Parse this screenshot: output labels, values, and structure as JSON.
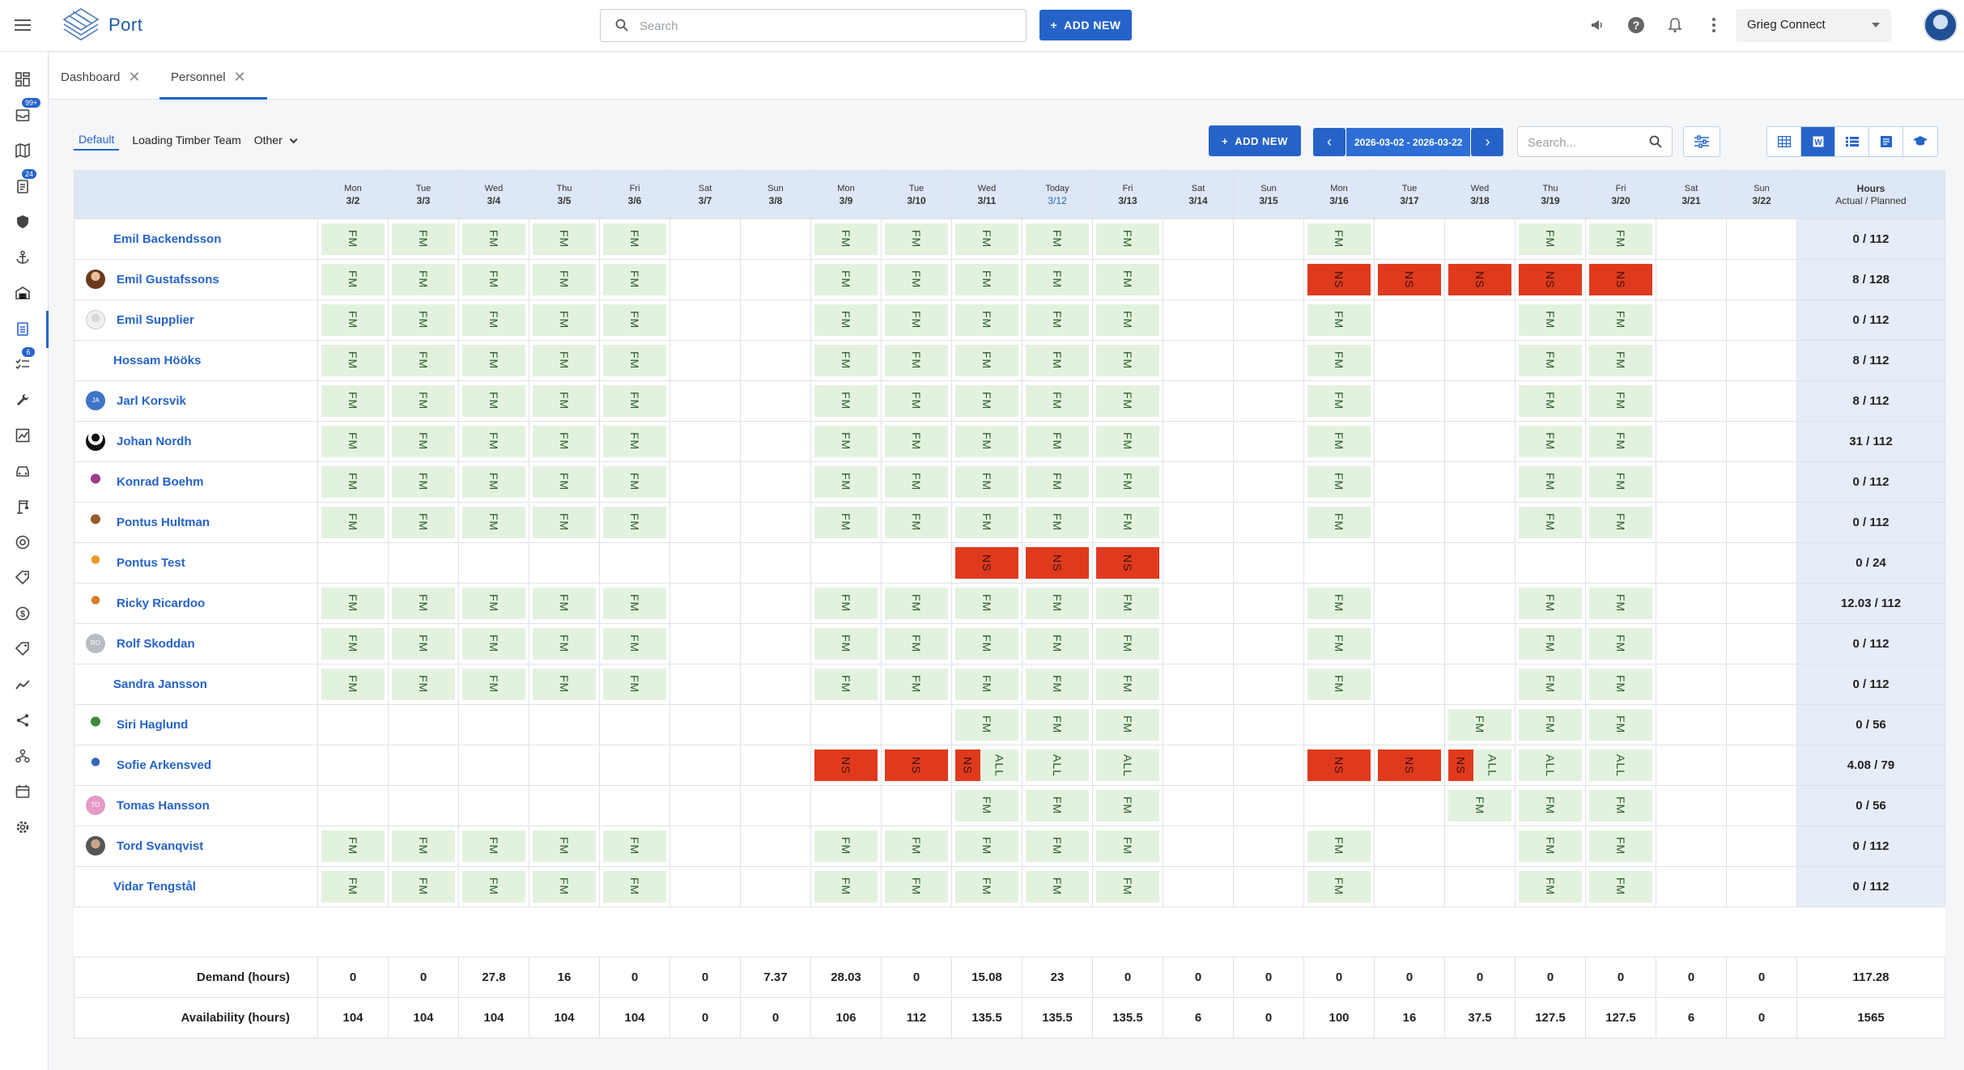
{
  "app": {
    "name": "Port",
    "logo": "port-logo-icon"
  },
  "topbar": {
    "search_placeholder": "Search",
    "add_new": "ADD NEW",
    "org": "Grieg Connect",
    "icons": [
      "megaphone-icon",
      "help-icon",
      "bell-icon",
      "more-vert-icon"
    ]
  },
  "sidebar": {
    "badges": {
      "inbox": "99+",
      "tasks": "24",
      "checks": "6"
    }
  },
  "tabs": [
    {
      "label": "Dashboard"
    },
    {
      "label": "Personnel"
    }
  ],
  "toolbar": {
    "filters": [
      "Default",
      "Loading Timber Team",
      "Other"
    ],
    "add_new": "ADD NEW",
    "date_range": "2026-03-02 - 2026-03-22",
    "search_placeholder": "Search..."
  },
  "columns": [
    {
      "d": "Mon",
      "n": "3/2"
    },
    {
      "d": "Tue",
      "n": "3/3"
    },
    {
      "d": "Wed",
      "n": "3/4"
    },
    {
      "d": "Thu",
      "n": "3/5"
    },
    {
      "d": "Fri",
      "n": "3/6"
    },
    {
      "d": "Sat",
      "n": "3/7"
    },
    {
      "d": "Sun",
      "n": "3/8"
    },
    {
      "d": "Mon",
      "n": "3/9"
    },
    {
      "d": "Tue",
      "n": "3/10"
    },
    {
      "d": "Wed",
      "n": "3/11"
    },
    {
      "d": "Today",
      "n": "3/12"
    },
    {
      "d": "Fri",
      "n": "3/13"
    },
    {
      "d": "Sat",
      "n": "3/14"
    },
    {
      "d": "Sun",
      "n": "3/15"
    },
    {
      "d": "Mon",
      "n": "3/16"
    },
    {
      "d": "Tue",
      "n": "3/17"
    },
    {
      "d": "Wed",
      "n": "3/18"
    },
    {
      "d": "Thu",
      "n": "3/19"
    },
    {
      "d": "Fri",
      "n": "3/20"
    },
    {
      "d": "Sat",
      "n": "3/21"
    },
    {
      "d": "Sun",
      "n": "3/22"
    }
  ],
  "hours_header": {
    "title": "Hours",
    "sub": "Actual / Planned"
  },
  "people": [
    {
      "name": "Emil Backendsson",
      "avatar": "",
      "hours": "0 / 112",
      "shifts": [
        "FM",
        "FM",
        "FM",
        "FM",
        "FM",
        "",
        "",
        "FM",
        "FM",
        "FM",
        "FM",
        "FM",
        "",
        "",
        "FM",
        "",
        "",
        "FM",
        "FM",
        "",
        ""
      ]
    },
    {
      "name": "Emil Gustafssons",
      "avatar": "photo-brown",
      "hours": "8 / 128",
      "shifts": [
        "FM",
        "FM",
        "FM",
        "FM",
        "FM",
        "",
        "",
        "FM",
        "FM",
        "FM",
        "FM",
        "FM",
        "",
        "",
        "NS",
        "NS",
        "NS",
        "NS",
        "NS",
        "",
        ""
      ]
    },
    {
      "name": "Emil Supplier",
      "avatar": "photo-grey",
      "hours": "0 / 112",
      "shifts": [
        "FM",
        "FM",
        "FM",
        "FM",
        "FM",
        "",
        "",
        "FM",
        "FM",
        "FM",
        "FM",
        "FM",
        "",
        "",
        "FM",
        "",
        "",
        "FM",
        "FM",
        "",
        ""
      ]
    },
    {
      "name": "Hossam Hööks",
      "avatar": "",
      "hours": "8 / 112",
      "shifts": [
        "FM",
        "FM",
        "FM",
        "FM",
        "FM",
        "",
        "",
        "FM",
        "FM",
        "FM",
        "FM",
        "FM",
        "",
        "",
        "FM",
        "",
        "",
        "FM",
        "FM",
        "",
        ""
      ]
    },
    {
      "name": "Jarl Korsvik",
      "avatar": "initials-JA",
      "hours": "8 / 112",
      "shifts": [
        "FM",
        "FM",
        "FM",
        "FM",
        "FM",
        "",
        "",
        "FM",
        "FM",
        "FM",
        "FM",
        "FM",
        "",
        "",
        "FM",
        "",
        "",
        "FM",
        "FM",
        "",
        ""
      ]
    },
    {
      "name": "Johan Nordh",
      "avatar": "photo-black",
      "hours": "31 / 112",
      "shifts": [
        "FM",
        "FM",
        "FM",
        "FM",
        "FM",
        "",
        "",
        "FM",
        "FM",
        "FM",
        "FM",
        "FM",
        "",
        "",
        "FM",
        "",
        "",
        "FM",
        "FM",
        "",
        ""
      ]
    },
    {
      "name": "Konrad Boehm",
      "avatar": "photo-purple",
      "hours": "0 / 112",
      "shifts": [
        "FM",
        "FM",
        "FM",
        "FM",
        "FM",
        "",
        "",
        "FM",
        "FM",
        "FM",
        "FM",
        "FM",
        "",
        "",
        "FM",
        "",
        "",
        "FM",
        "FM",
        "",
        ""
      ]
    },
    {
      "name": "Pontus Hultman",
      "avatar": "photo-brown2",
      "hours": "0 / 112",
      "shifts": [
        "FM",
        "FM",
        "FM",
        "FM",
        "FM",
        "",
        "",
        "FM",
        "FM",
        "FM",
        "FM",
        "FM",
        "",
        "",
        "FM",
        "",
        "",
        "FM",
        "FM",
        "",
        ""
      ]
    },
    {
      "name": "Pontus Test",
      "avatar": "photo-orange",
      "hours": "0 / 24",
      "shifts": [
        "",
        "",
        "",
        "",
        "",
        "",
        "",
        "",
        "",
        "NS",
        "NS",
        "NS",
        "",
        "",
        "",
        "",
        "",
        "",
        "",
        "",
        ""
      ]
    },
    {
      "name": "Ricky Ricardoo",
      "avatar": "photo-orange2",
      "hours": "12.03 / 112",
      "shifts": [
        "FM",
        "FM",
        "FM",
        "FM",
        "FM",
        "",
        "",
        "FM",
        "FM",
        "FM",
        "FM",
        "FM",
        "",
        "",
        "FM",
        "",
        "",
        "FM",
        "FM",
        "",
        ""
      ]
    },
    {
      "name": "Rolf Skoddan",
      "avatar": "initials-RO",
      "hours": "0 / 112",
      "shifts": [
        "FM",
        "FM",
        "FM",
        "FM",
        "FM",
        "",
        "",
        "FM",
        "FM",
        "FM",
        "FM",
        "FM",
        "",
        "",
        "FM",
        "",
        "",
        "FM",
        "FM",
        "",
        ""
      ]
    },
    {
      "name": "Sandra Jansson",
      "avatar": "",
      "hours": "0 / 112",
      "shifts": [
        "FM",
        "FM",
        "FM",
        "FM",
        "FM",
        "",
        "",
        "FM",
        "FM",
        "FM",
        "FM",
        "FM",
        "",
        "",
        "FM",
        "",
        "",
        "FM",
        "FM",
        "",
        ""
      ]
    },
    {
      "name": "Siri Haglund",
      "avatar": "photo-green",
      "hours": "0 / 56",
      "shifts": [
        "",
        "",
        "",
        "",
        "",
        "",
        "",
        "",
        "",
        "FM",
        "FM",
        "FM",
        "",
        "",
        "",
        "",
        "FM",
        "FM",
        "FM",
        "",
        ""
      ]
    },
    {
      "name": "Sofie Arkensved",
      "avatar": "photo-blue",
      "hours": "4.08 / 79",
      "shifts": [
        "",
        "",
        "",
        "",
        "",
        "",
        "",
        "NS",
        "NS",
        "NS|ALL",
        "ALL",
        "ALL",
        "",
        "",
        "NS",
        "NS",
        "NS|ALL",
        "ALL",
        "ALL",
        "",
        ""
      ]
    },
    {
      "name": "Tomas Hansson",
      "avatar": "initials-TO",
      "hours": "0 / 56",
      "shifts": [
        "",
        "",
        "",
        "",
        "",
        "",
        "",
        "",
        "",
        "FM",
        "FM",
        "FM",
        "",
        "",
        "",
        "",
        "FM",
        "FM",
        "FM",
        "",
        ""
      ]
    },
    {
      "name": "Tord Svanqvist",
      "avatar": "photo-man",
      "hours": "0 / 112",
      "shifts": [
        "FM",
        "FM",
        "FM",
        "FM",
        "FM",
        "",
        "",
        "FM",
        "FM",
        "FM",
        "FM",
        "FM",
        "",
        "",
        "FM",
        "",
        "",
        "FM",
        "FM",
        "",
        ""
      ]
    },
    {
      "name": "Vidar Tengstål",
      "avatar": "",
      "hours": "0 / 112",
      "shifts": [
        "FM",
        "FM",
        "FM",
        "FM",
        "FM",
        "",
        "",
        "FM",
        "FM",
        "FM",
        "FM",
        "FM",
        "",
        "",
        "FM",
        "",
        "",
        "FM",
        "FM",
        "",
        ""
      ]
    }
  ],
  "totals": {
    "demand_label": "Demand (hours)",
    "demand": [
      "0",
      "0",
      "27.8",
      "16",
      "0",
      "0",
      "7.37",
      "28.03",
      "0",
      "15.08",
      "23",
      "0",
      "0",
      "0",
      "0",
      "0",
      "0",
      "0",
      "0",
      "0",
      "0"
    ],
    "demand_total": "117.28",
    "availability_label": "Availability (hours)",
    "availability": [
      "104",
      "104",
      "104",
      "104",
      "104",
      "0",
      "0",
      "106",
      "112",
      "135.5",
      "135.5",
      "135.5",
      "6",
      "0",
      "100",
      "16",
      "37.5",
      "127.5",
      "127.5",
      "6",
      "0"
    ],
    "availability_total": "1565"
  },
  "colors": {
    "accent": "#2663c9",
    "fm": "#e3f2df",
    "ns": "#e03a1e",
    "header": "#dde7f6"
  }
}
